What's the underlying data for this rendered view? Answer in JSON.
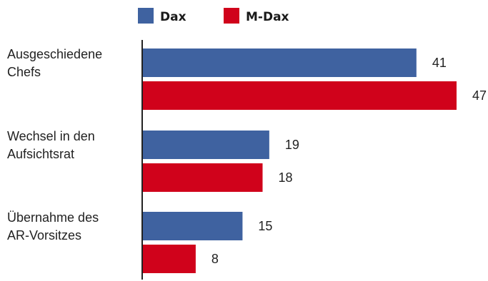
{
  "chart_data": {
    "type": "bar",
    "orientation": "horizontal",
    "categories": [
      [
        "Ausgeschiedene",
        "Chefs"
      ],
      [
        "Wechsel in den",
        "Aufsichtsrat"
      ],
      [
        "Übernahme des",
        "AR-Vorsitzes"
      ]
    ],
    "series": [
      {
        "name": "Dax",
        "values": [
          41,
          19,
          15
        ],
        "color": "#3f62a0"
      },
      {
        "name": "M-Dax",
        "values": [
          47,
          18,
          8
        ],
        "color": "#d0021b"
      }
    ],
    "xlim": [
      0,
      47
    ],
    "grid": false,
    "legend_position": "top"
  }
}
